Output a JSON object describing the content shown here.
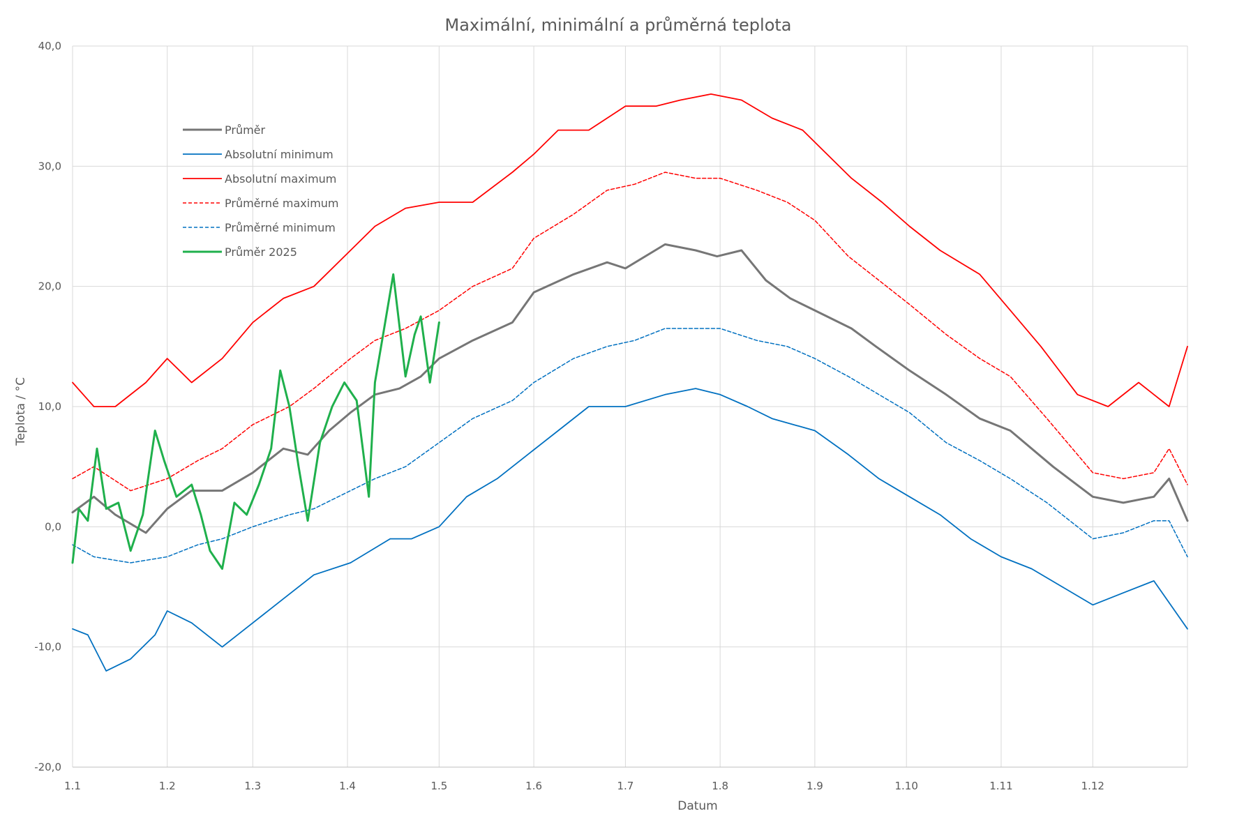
{
  "chart_data": {
    "type": "line",
    "title": "Maximální, minimální a průměrná teplota",
    "xlabel": "Datum",
    "ylabel": "Teplota / °C",
    "ylim": [
      -20,
      40
    ],
    "y_ticks": [
      "-20,0",
      "-10,0",
      "0,0",
      "10,0",
      "20,0",
      "30,0",
      "40,0"
    ],
    "x_ticks": [
      "1.1",
      "1.2",
      "1.3",
      "1.4",
      "1.5",
      "1.6",
      "1.7",
      "1.8",
      "1.9",
      "1.10",
      "1.11",
      "1.12"
    ],
    "x_tick_days": [
      1,
      32,
      60,
      91,
      121,
      152,
      182,
      213,
      244,
      274,
      305,
      335
    ],
    "x_range_days": [
      1,
      366
    ],
    "grid": true,
    "legend_position": "top-left",
    "colors": {
      "gray": "#767676",
      "blue": "#0070c0",
      "red": "#ff0000",
      "green": "#1fb04c",
      "grid": "#d9d9d9"
    },
    "series": [
      {
        "name": "Průměr",
        "style": "solid-thick",
        "color": "#767676",
        "x": [
          1,
          8,
          15,
          25,
          32,
          40,
          50,
          60,
          70,
          78,
          85,
          92,
          100,
          108,
          115,
          121,
          132,
          145,
          152,
          165,
          176,
          182,
          195,
          205,
          212,
          220,
          228,
          236,
          244,
          256,
          264,
          275,
          287,
          298,
          308,
          322,
          335,
          345,
          355,
          360,
          366
        ],
        "y": [
          1.2,
          2.5,
          1.0,
          -0.5,
          1.5,
          3.0,
          3.0,
          4.5,
          6.5,
          6.0,
          8.0,
          9.5,
          11.0,
          11.5,
          12.5,
          14.0,
          15.5,
          17.0,
          19.5,
          21.0,
          22.0,
          21.5,
          23.5,
          23.0,
          22.5,
          23.0,
          20.5,
          19.0,
          18.0,
          16.5,
          15.0,
          13.0,
          11.0,
          9.0,
          8.0,
          5.0,
          2.5,
          2.0,
          2.5,
          4.0,
          0.5
        ]
      },
      {
        "name": "Absolutní minimum",
        "style": "solid",
        "color": "#0070c0",
        "x": [
          1,
          6,
          12,
          20,
          28,
          32,
          40,
          50,
          60,
          70,
          80,
          92,
          105,
          112,
          121,
          130,
          140,
          150,
          160,
          170,
          182,
          195,
          205,
          213,
          222,
          230,
          244,
          255,
          265,
          275,
          285,
          295,
          305,
          315,
          325,
          335,
          345,
          355,
          366
        ],
        "y": [
          -8.5,
          -9.0,
          -12.0,
          -11.0,
          -9.0,
          -7.0,
          -8.0,
          -10.0,
          -8.0,
          -6.0,
          -4.0,
          -3.0,
          -1.0,
          -1.0,
          0.0,
          2.5,
          4.0,
          6.0,
          8.0,
          10.0,
          10.0,
          11.0,
          11.5,
          11.0,
          10.0,
          9.0,
          8.0,
          6.0,
          4.0,
          2.5,
          1.0,
          -1.0,
          -2.5,
          -3.5,
          -5.0,
          -6.5,
          -5.5,
          -4.5,
          -8.5
        ]
      },
      {
        "name": "Absolutní maximum",
        "style": "solid",
        "color": "#ff0000",
        "x": [
          1,
          8,
          15,
          25,
          32,
          40,
          50,
          60,
          70,
          80,
          92,
          100,
          110,
          121,
          132,
          145,
          152,
          160,
          170,
          182,
          192,
          200,
          210,
          220,
          230,
          240,
          248,
          256,
          266,
          275,
          285,
          298,
          308,
          318,
          330,
          340,
          350,
          360,
          366
        ],
        "y": [
          12.0,
          10.0,
          10.0,
          12.0,
          14.0,
          12.0,
          14.0,
          17.0,
          19.0,
          20.0,
          23.0,
          25.0,
          26.5,
          27.0,
          27.0,
          29.5,
          31.0,
          33.0,
          33.0,
          35.0,
          35.0,
          35.5,
          36.0,
          35.5,
          34.0,
          33.0,
          31.0,
          29.0,
          27.0,
          25.0,
          23.0,
          21.0,
          18.0,
          15.0,
          11.0,
          10.0,
          12.0,
          10.0,
          15.0
        ]
      },
      {
        "name": "Průměrné maximum",
        "style": "dashed",
        "color": "#ff0000",
        "x": [
          1,
          8,
          20,
          32,
          42,
          50,
          60,
          72,
          80,
          92,
          100,
          110,
          121,
          132,
          145,
          152,
          165,
          176,
          185,
          195,
          205,
          213,
          225,
          235,
          244,
          255,
          265,
          275,
          287,
          298,
          308,
          320,
          335,
          345,
          355,
          360,
          366
        ],
        "y": [
          4.0,
          5.0,
          3.0,
          4.0,
          5.5,
          6.5,
          8.5,
          10.0,
          11.5,
          14.0,
          15.5,
          16.5,
          18.0,
          20.0,
          21.5,
          24.0,
          26.0,
          28.0,
          28.5,
          29.5,
          29.0,
          29.0,
          28.0,
          27.0,
          25.5,
          22.5,
          20.5,
          18.5,
          16.0,
          14.0,
          12.5,
          9.0,
          4.5,
          4.0,
          4.5,
          6.5,
          3.5
        ]
      },
      {
        "name": "Průměrné minimum",
        "style": "dashed",
        "color": "#0070c0",
        "x": [
          1,
          8,
          20,
          32,
          42,
          50,
          60,
          72,
          80,
          92,
          100,
          110,
          121,
          132,
          145,
          152,
          165,
          176,
          185,
          195,
          205,
          213,
          225,
          235,
          244,
          255,
          265,
          275,
          287,
          298,
          308,
          320,
          335,
          345,
          355,
          360,
          366
        ],
        "y": [
          -1.5,
          -2.5,
          -3.0,
          -2.5,
          -1.5,
          -1.0,
          0.0,
          1.0,
          1.5,
          3.0,
          4.0,
          5.0,
          7.0,
          9.0,
          10.5,
          12.0,
          14.0,
          15.0,
          15.5,
          16.5,
          16.5,
          16.5,
          15.5,
          15.0,
          14.0,
          12.5,
          11.0,
          9.5,
          7.0,
          5.5,
          4.0,
          2.0,
          -1.0,
          -0.5,
          0.5,
          0.5,
          -2.5
        ]
      },
      {
        "name": "Průměr 2025",
        "style": "solid-thick",
        "color": "#1fb04c",
        "x": [
          1,
          3,
          6,
          9,
          12,
          16,
          20,
          24,
          28,
          31,
          35,
          40,
          43,
          46,
          50,
          54,
          58,
          62,
          66,
          69,
          72,
          75,
          78,
          82,
          86,
          90,
          94,
          98,
          100,
          103,
          106,
          110,
          113,
          115,
          118,
          121
        ],
        "y": [
          -3.0,
          1.5,
          0.5,
          6.5,
          1.5,
          2.0,
          -2.0,
          1.0,
          8.0,
          5.5,
          2.5,
          3.5,
          1.0,
          -2.0,
          -3.5,
          2.0,
          1.0,
          3.5,
          6.5,
          13.0,
          10.0,
          5.0,
          0.5,
          7.0,
          10.0,
          12.0,
          10.5,
          2.5,
          12.0,
          16.5,
          21.0,
          12.5,
          16.0,
          17.5,
          12.0,
          17.0
        ]
      }
    ]
  }
}
